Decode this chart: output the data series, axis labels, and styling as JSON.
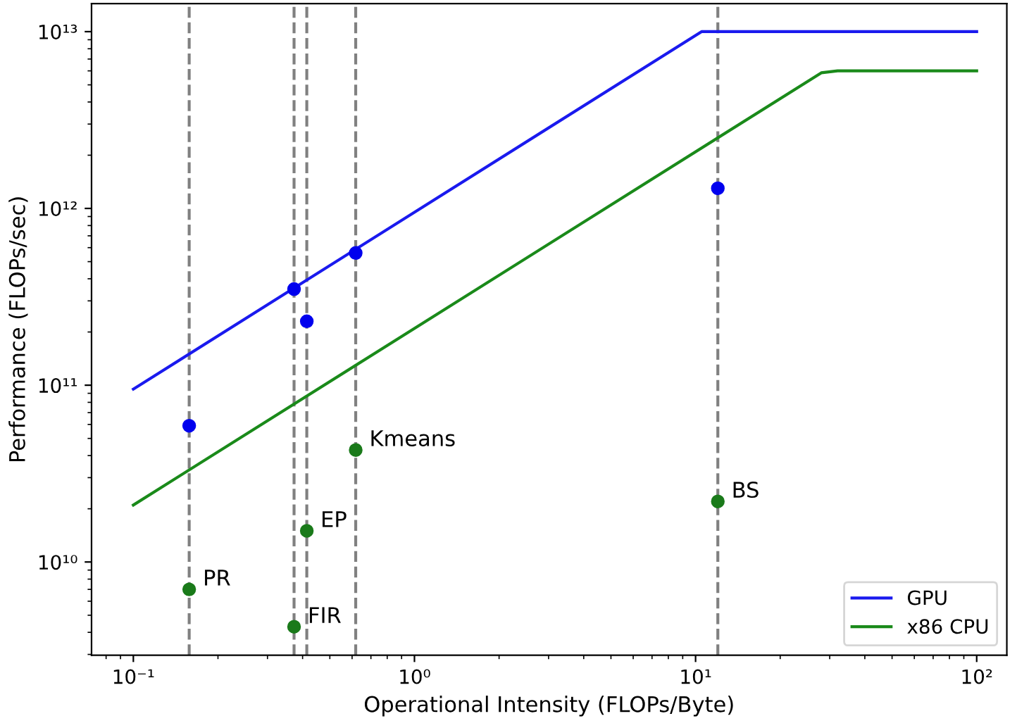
{
  "chart_data": {
    "type": "line",
    "xlabel": "Operational Intensity (FLOPs/Byte)",
    "ylabel": "Performance (FLOPs/sec)",
    "log": "xy",
    "xlim": [
      0.071,
      128
    ],
    "ylim": [
      2970000000.0,
      14400000000000.0
    ],
    "xticks": [
      {
        "value": 0.1,
        "label": "10⁻¹"
      },
      {
        "value": 1,
        "label": "10⁰"
      },
      {
        "value": 10,
        "label": "10¹"
      },
      {
        "value": 100,
        "label": "10²"
      }
    ],
    "yticks": [
      {
        "value": 10000000000.0,
        "label": "10¹⁰"
      },
      {
        "value": 100000000000.0,
        "label": "10¹¹"
      },
      {
        "value": 1000000000000.0,
        "label": "10¹²"
      },
      {
        "value": 10000000000000.0,
        "label": "10¹³"
      }
    ],
    "series": [
      {
        "name": "GPU",
        "color": "#1a1aee",
        "x": [
          0.1,
          10.5,
          100
        ],
        "values": [
          95000000000.0,
          10000000000000.0,
          10000000000000.0
        ]
      },
      {
        "name": "x86 CPU",
        "type": "line",
        "color": "#1a8a1a",
        "x": [
          0.1,
          28,
          32,
          100
        ],
        "values": [
          21000000000.0,
          5850000000000.0,
          6000000000000.0,
          6000000000000.0
        ]
      },
      {
        "type": "scatter",
        "marker": "circle",
        "color": "#0000ee",
        "x": [
          0.158,
          0.373,
          0.414,
          0.618,
          12.0
        ],
        "values": [
          59000000000.0,
          350000000000.0,
          230000000000.0,
          560000000000.0,
          1300000000000.0
        ]
      },
      {
        "type": "scatter",
        "marker": "circle",
        "color": "#1a7a1a",
        "x": [
          0.158,
          0.373,
          0.414,
          0.618,
          12.0
        ],
        "values": [
          7000000000.0,
          4300000000.0,
          15000000000.0,
          43000000000.0,
          22000000000.0
        ]
      }
    ],
    "ref_lines": [
      {
        "axis": "x",
        "value": 0.158,
        "color": "#808080",
        "line_style": "dashed"
      },
      {
        "axis": "x",
        "value": 0.373,
        "color": "#808080",
        "line_style": "dashed"
      },
      {
        "axis": "x",
        "value": 0.414,
        "color": "#808080",
        "line_style": "dashed"
      },
      {
        "axis": "x",
        "value": 0.618,
        "color": "#808080",
        "line_style": "dashed"
      },
      {
        "axis": "x",
        "value": 12.0,
        "color": "#808080",
        "line_style": "dashed"
      }
    ],
    "annotations": [
      {
        "text": "PR",
        "x": 0.158,
        "y": 7000000000.0
      },
      {
        "text": "FIR",
        "x": 0.373,
        "y": 4300000000.0
      },
      {
        "text": "EP",
        "x": 0.414,
        "y": 15000000000.0
      },
      {
        "text": "Kmeans",
        "x": 0.618,
        "y": 43000000000.0
      },
      {
        "text": "BS",
        "x": 12.0,
        "y": 22000000000.0
      }
    ],
    "legend": "bottom right",
    "grid": false
  }
}
